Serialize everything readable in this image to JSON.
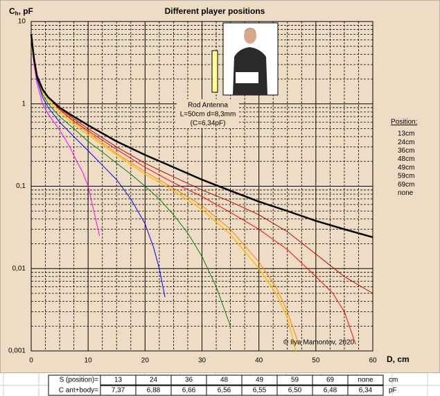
{
  "chart_data": {
    "type": "line",
    "title": "Different  player positions",
    "ylabel": "C",
    "ylabel_sub": "h",
    "ylabel_rest": ", pF",
    "xlabel": "D, cm",
    "log_y": true,
    "grid": true,
    "minor_grid": true,
    "xlim": [
      0,
      60
    ],
    "xticks": [
      0,
      10,
      20,
      30,
      40,
      50,
      60
    ],
    "ylim": [
      0.001,
      10
    ],
    "yticks": [
      {
        "value": 0.001,
        "label": "0,001"
      },
      {
        "value": 0.01,
        "label": "0,01"
      },
      {
        "value": 0.1,
        "label": "0,1"
      },
      1,
      10
    ],
    "legend_title": "Position:",
    "legend_position": "right",
    "annotation": [
      "Rod Antenna",
      "L=50cm d=8,3mm",
      "(C=6,34pF)"
    ],
    "credit": "© Ilya Mamontov, 2020",
    "series": [
      {
        "name": "13cm",
        "color": "#ff00ff",
        "width": 1,
        "x": [
          0,
          0.5,
          1,
          2,
          3,
          4,
          5,
          6,
          7,
          8,
          9,
          10,
          11,
          12
        ],
        "values": [
          7,
          3,
          1.8,
          1,
          0.75,
          0.6,
          0.48,
          0.37,
          0.28,
          0.2,
          0.15,
          0.1,
          0.05,
          0.025
        ]
      },
      {
        "name": "24cm",
        "color": "#0000ff",
        "width": 1,
        "x": [
          0,
          0.5,
          1,
          2,
          3,
          5,
          7.5,
          10,
          12.5,
          15,
          17.5,
          20,
          21.5,
          22.5,
          23.5
        ],
        "values": [
          7,
          3.3,
          2,
          1.2,
          0.9,
          0.6,
          0.4,
          0.27,
          0.18,
          0.12,
          0.07,
          0.035,
          0.018,
          0.01,
          0.0045
        ]
      },
      {
        "name": "36cm",
        "color": "#008000",
        "width": 1,
        "x": [
          0,
          0.5,
          1,
          2,
          3,
          5,
          7.5,
          10,
          12.5,
          15,
          17.5,
          20,
          22.5,
          25,
          27.5,
          30,
          32.5,
          35
        ],
        "values": [
          7,
          3.4,
          2.1,
          1.3,
          1,
          0.7,
          0.5,
          0.35,
          0.26,
          0.19,
          0.14,
          0.1,
          0.07,
          0.045,
          0.027,
          0.014,
          0.006,
          0.002
        ]
      },
      {
        "name": "48cm",
        "color": "#ffc000",
        "width": 1.5,
        "x": [
          0,
          0.5,
          1,
          2,
          3,
          5,
          7.5,
          10,
          15,
          20,
          25,
          30,
          35,
          40,
          43,
          45,
          46.5
        ],
        "values": [
          7,
          3.5,
          2.2,
          1.4,
          1.1,
          0.8,
          0.56,
          0.42,
          0.24,
          0.14,
          0.088,
          0.052,
          0.026,
          0.01,
          0.005,
          0.0025,
          0.001
        ]
      },
      {
        "name": "49cm",
        "color": "#ff8000",
        "width": 1,
        "x": [
          0,
          0.5,
          1,
          2,
          3,
          5,
          7.5,
          10,
          15,
          20,
          25,
          30,
          35,
          40,
          43,
          45,
          47
        ],
        "values": [
          7,
          3.5,
          2.2,
          1.5,
          1.2,
          0.85,
          0.6,
          0.45,
          0.25,
          0.15,
          0.095,
          0.058,
          0.03,
          0.012,
          0.006,
          0.003,
          0.0012
        ]
      },
      {
        "name": "59cm",
        "color": "#ff0000",
        "width": 1,
        "x": [
          0,
          0.5,
          1,
          2,
          3,
          5,
          7.5,
          10,
          15,
          20,
          25,
          30,
          35,
          40,
          45,
          50,
          53,
          55,
          57
        ],
        "values": [
          7,
          3.5,
          2.2,
          1.5,
          1.2,
          0.85,
          0.62,
          0.47,
          0.28,
          0.17,
          0.11,
          0.075,
          0.048,
          0.03,
          0.017,
          0.008,
          0.005,
          0.003,
          0.0012
        ]
      },
      {
        "name": "69cm",
        "color": "#c00000",
        "width": 1,
        "x": [
          0,
          0.5,
          1,
          2,
          3,
          5,
          7.5,
          10,
          15,
          20,
          25,
          30,
          35,
          40,
          45,
          50,
          55,
          60
        ],
        "values": [
          7,
          3.5,
          2.2,
          1.5,
          1.2,
          0.88,
          0.66,
          0.5,
          0.3,
          0.19,
          0.13,
          0.09,
          0.065,
          0.045,
          0.028,
          0.015,
          0.008,
          0.005
        ]
      },
      {
        "name": "none",
        "color": "#000000",
        "width": 2.5,
        "x": [
          0,
          0.5,
          1,
          2,
          3,
          5,
          7.5,
          10,
          15,
          20,
          25,
          30,
          35,
          40,
          45,
          50,
          55,
          60
        ],
        "values": [
          7,
          3.5,
          2.2,
          1.5,
          1.2,
          0.9,
          0.7,
          0.55,
          0.35,
          0.24,
          0.17,
          0.12,
          0.088,
          0.065,
          0.05,
          0.038,
          0.03,
          0.024
        ]
      }
    ]
  },
  "table": {
    "rows": [
      {
        "label": "S (position)=",
        "cells": [
          "13",
          "24",
          "36",
          "48",
          "49",
          "59",
          "69",
          "none"
        ],
        "unit": "cm"
      },
      {
        "label": "C ant+body=",
        "cells": [
          "7,37",
          "6,88",
          "6,66",
          "6,56",
          "6,55",
          "6,50",
          "6,48",
          "6,34"
        ],
        "unit": "pF"
      }
    ]
  }
}
